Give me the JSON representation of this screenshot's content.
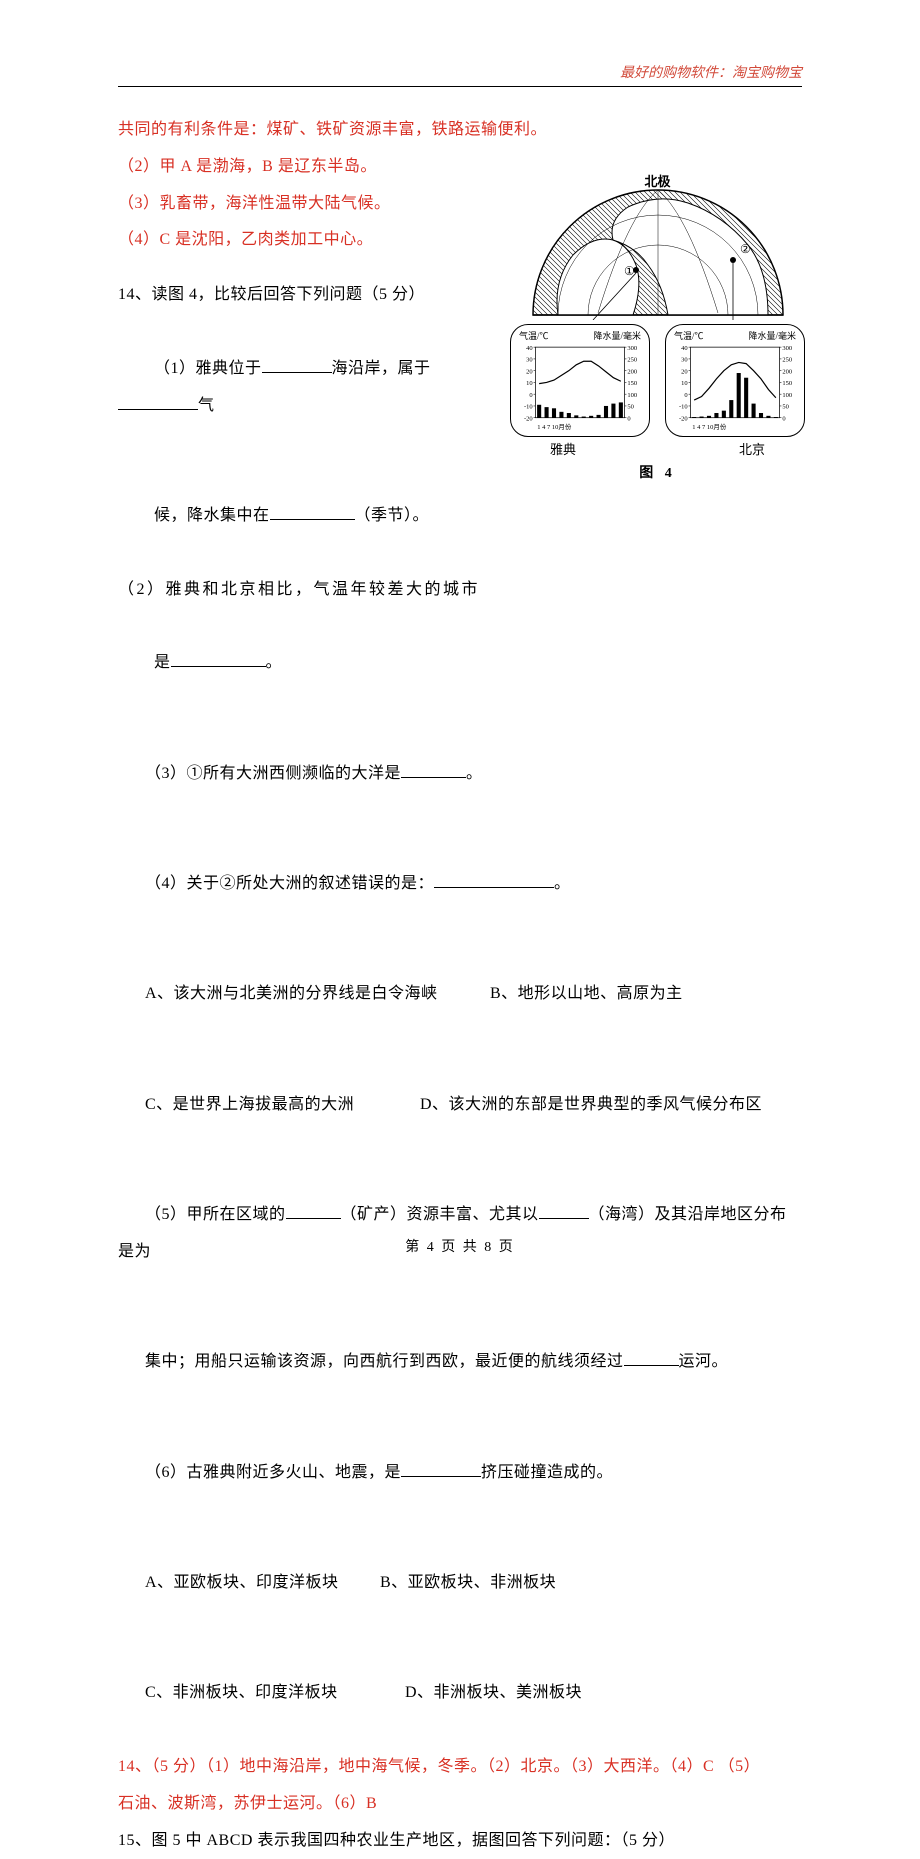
{
  "header": {
    "link_text": "最好的购物软件：淘宝购物宝"
  },
  "answers_top": [
    "共同的有利条件是：煤矿、铁矿资源丰富，铁路运输便利。",
    "（2）甲 A 是渤海，B 是辽东半岛。",
    "（3）乳畜带，海洋性温带大陆气候。",
    "（4）C 是沈阳，乙肉类加工中心。"
  ],
  "figure": {
    "north_label": "北极",
    "marker1": "①",
    "marker2": "②",
    "caption": "图  4",
    "label_temp": "气温/℃",
    "label_precip": "降水量/毫米",
    "temp_ticks": [
      "40",
      "30",
      "20",
      "10",
      "0",
      "-10",
      "-20"
    ],
    "precip_ticks": [
      "300",
      "250",
      "200",
      "150",
      "100",
      "50",
      "0"
    ],
    "month_ticks": "1   4   7   10月份",
    "athens": {
      "name": "雅典",
      "line_color": "#000000",
      "bar_color": "#000000",
      "bg": "#ffffff",
      "temp_values": [
        9,
        10,
        12,
        16,
        20,
        25,
        28,
        28,
        24,
        19,
        14,
        11
      ],
      "precip_values": [
        55,
        45,
        40,
        25,
        20,
        10,
        5,
        8,
        12,
        50,
        60,
        65
      ]
    },
    "beijing": {
      "name": "北京",
      "line_color": "#000000",
      "bar_color": "#000000",
      "bg": "#ffffff",
      "temp_values": [
        -5,
        -2,
        5,
        13,
        20,
        25,
        27,
        26,
        20,
        13,
        4,
        -3
      ],
      "precip_values": [
        3,
        5,
        8,
        20,
        30,
        75,
        190,
        170,
        60,
        20,
        8,
        3
      ]
    },
    "globe_style": {
      "outline_color": "#000000",
      "ocean_hatch_color": "#000000",
      "land_fill": "#ffffff"
    }
  },
  "q14": {
    "intro": "14、读图 4，比较后回答下列问题（5 分）",
    "p1a": "（1）雅典位于",
    "p1b": "海沿岸，属于",
    "p1c": "气",
    "p1_line2a": "候，降水集中在",
    "p1_line2b": "（季节）。",
    "p2a": "（2）雅典和北京相比，气温年较差大的城市",
    "p2b": "是",
    "p2c": "。",
    "p3a": "（3）①所有大洲西侧濒临的大洋是",
    "p3b": "。",
    "p4a": "（4）关于②所处大洲的叙述错误的是：",
    "p4b": "。",
    "optA": "A、该大洲与北美洲的分界线是白令海峡",
    "optB": "B、地形以山地、高原为主",
    "optC": "C、是世界上海拔最高的大洲",
    "optD": "D、该大洲的东部是世界典型的季风气候分布区",
    "p5a": "（5）甲所在区域的",
    "p5b": "（矿产）资源丰富、尤其以",
    "p5c": "（海湾）及其沿岸地区分布是为",
    "p5_line2a": "集中；用船只运输该资源，向西航行到西欧，最近便的航线须经过",
    "p5_line2b": "运河。",
    "p6a": "（6）古雅典附近多火山、地震，是",
    "p6b": "挤压碰撞造成的。",
    "opt6A": "A、亚欧板块、印度洋板块",
    "opt6B": "B、亚欧板块、非洲板块",
    "opt6C": "C、非洲板块、印度洋板块",
    "opt6D": "D、非洲板块、美洲板块"
  },
  "q14_answers": [
    "14、（5 分）（1）地中海沿岸，地中海气候，冬季。（2）北京。（3）大西洋。（4）C （5）",
    "石油、波斯湾，苏伊士运河。（6）B"
  ],
  "q15": "15、图 5 中 ABCD 表示我国四种农业生产地区，据图回答下列问题：（5 分）",
  "footer": "第 4 页 共 8 页"
}
